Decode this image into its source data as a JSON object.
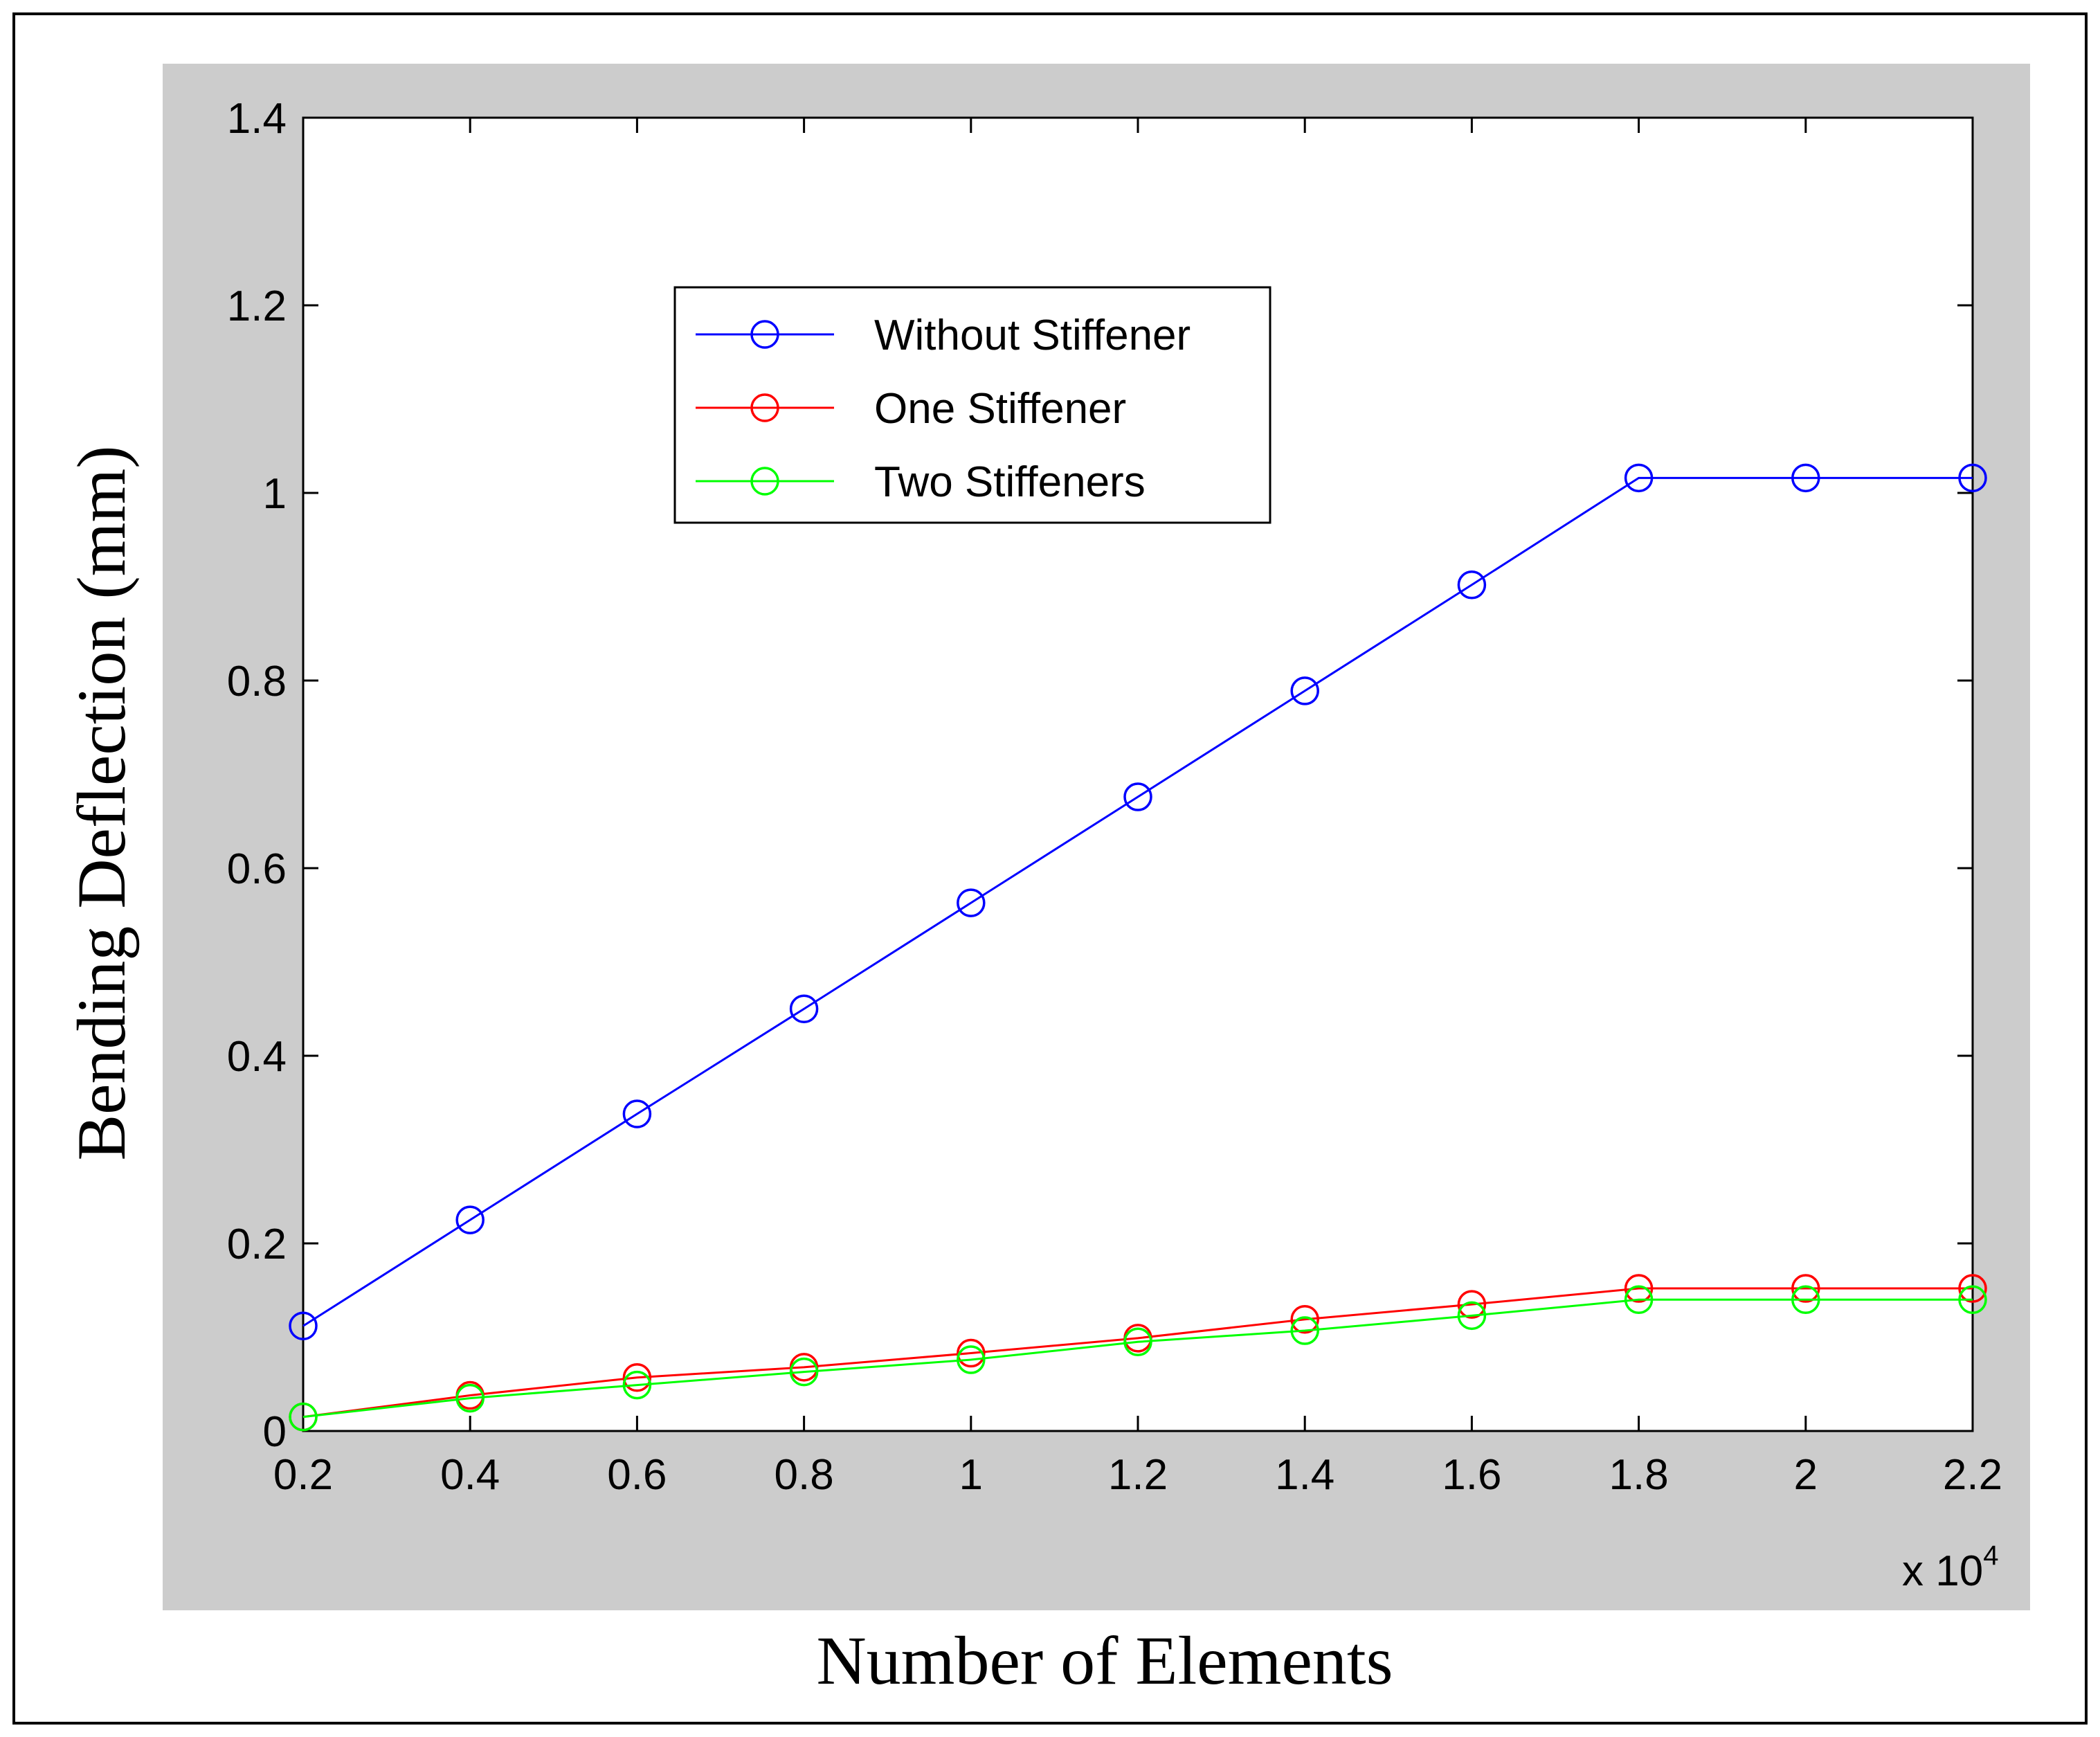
{
  "chart_data": {
    "type": "line",
    "xlabel": "Number of Elements",
    "ylabel": "Bending Deflection (mm)",
    "x_multiplier": "x 10",
    "x_multiplier_exponent": "4",
    "x": [
      0.2,
      0.4,
      0.6,
      0.8,
      1.0,
      1.2,
      1.4,
      1.6,
      1.8,
      2.0,
      2.2
    ],
    "xlim": [
      0.2,
      2.2
    ],
    "ylim": [
      0,
      1.4
    ],
    "x_ticks": [
      "0.2",
      "0.4",
      "0.6",
      "0.8",
      "1",
      "1.2",
      "1.4",
      "1.6",
      "1.8",
      "2",
      "2.2"
    ],
    "y_ticks": [
      {
        "value": 0,
        "label": "0"
      },
      {
        "value": 0.2,
        "label": "0.2"
      },
      {
        "value": 0.4,
        "label": "0.4"
      },
      {
        "value": 0.6,
        "label": "0.6"
      },
      {
        "value": 0.8,
        "label": "0.8"
      },
      {
        "value": 1.0,
        "label": "1"
      },
      {
        "value": 1.2,
        "label": "1.2"
      },
      {
        "value": 1.4,
        "label": "1.4"
      }
    ],
    "grid": false,
    "legend_position": "upper-left inside axes",
    "series": [
      {
        "name": "Without Stiffener",
        "color": "#0000ff",
        "values": [
          0.112,
          0.225,
          0.338,
          0.45,
          0.563,
          0.676,
          0.789,
          0.902,
          1.016,
          1.016,
          1.016
        ]
      },
      {
        "name": "One Stiffener",
        "color": "#ff0000",
        "values": [
          0.015,
          0.038,
          0.057,
          0.068,
          0.083,
          0.099,
          0.119,
          0.135,
          0.152,
          0.152,
          0.152
        ]
      },
      {
        "name": "Two Stiffeners",
        "color": "#00ff00",
        "values": [
          0.015,
          0.035,
          0.049,
          0.063,
          0.076,
          0.095,
          0.107,
          0.123,
          0.14,
          0.14,
          0.14
        ]
      }
    ]
  },
  "colors": {
    "figure_background": "#cccccc",
    "axes_background": "#ffffff",
    "frame": "#000000"
  }
}
